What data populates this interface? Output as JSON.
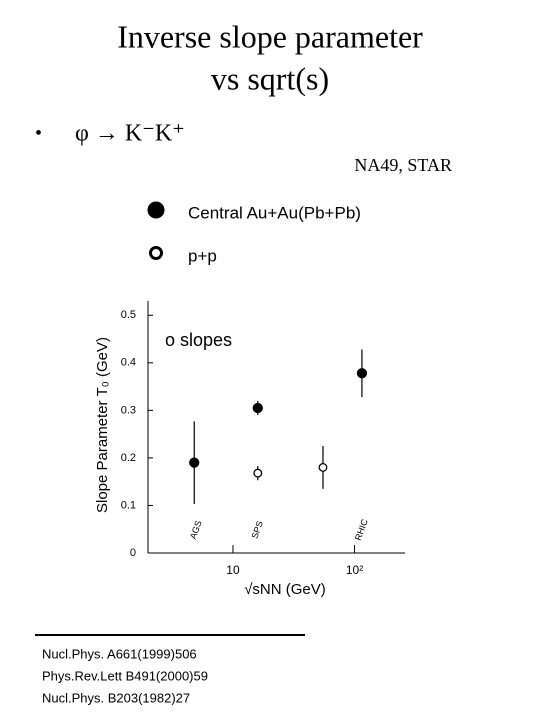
{
  "title": [
    "Inverse slope parameter",
    "vs sqrt(s)"
  ],
  "bullet": "φ → K⁻K⁺",
  "source": "NA49, STAR",
  "references": [
    "Nucl.Phys. A661(1999)506",
    "Phys.Rev.Lett B491(2000)59",
    "Nucl.Phys. B203(1982)27"
  ],
  "chart_data": {
    "type": "errorbar",
    "annotation": "o slopes",
    "region_labels": [
      {
        "text": "AGS",
        "x": 5
      },
      {
        "text": "SPS",
        "x": 16
      },
      {
        "text": "RHIC",
        "x": 115
      }
    ],
    "xlabel": "√sNN (GeV)",
    "ylabel": "Slope Parameter T₀ (GeV)",
    "xscale": "log",
    "xlim": [
      2,
      260
    ],
    "xticks": [
      10,
      {
        "value": 100,
        "label": "10²"
      }
    ],
    "ylim": [
      0,
      0.53
    ],
    "yticks": [
      0,
      0.1,
      0.2,
      0.3,
      0.4,
      0.5
    ],
    "series": [
      {
        "name": "Central Au+Au(Pb+Pb)",
        "color": "#000000",
        "marker": "filled",
        "x": [
          4.8,
          16,
          115
        ],
        "values": [
          0.19,
          0.305,
          0.378
        ],
        "errors": [
          0.087,
          0.015,
          0.05
        ]
      },
      {
        "name": "p+p",
        "color": "#000000",
        "marker": "open",
        "x": [
          16,
          55
        ],
        "values": [
          0.168,
          0.18
        ],
        "errors": [
          0.015,
          0.045
        ]
      }
    ]
  }
}
